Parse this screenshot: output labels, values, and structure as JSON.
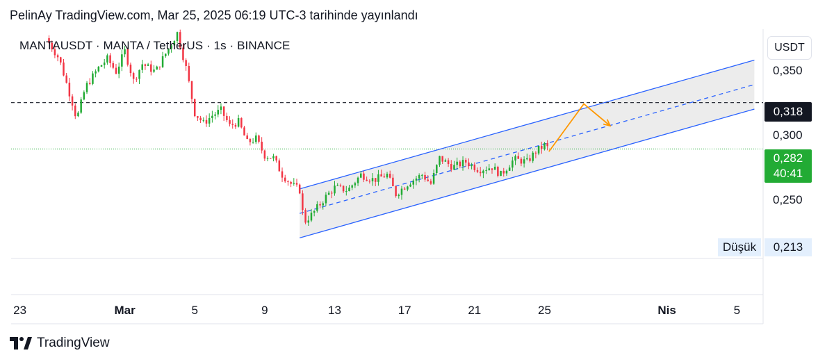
{
  "header": {
    "text": "PelinAy TradingView.com, Mar 25, 2025 06:19 UTC-3 tarihinde yayınlandı"
  },
  "symbol_line": "MANTAUSDT · MANTA / TetherUS · 1s · BINANCE",
  "currency_button": "USDT",
  "brand": {
    "name": "TradingView",
    "icon": "tradingview-logo-icon"
  },
  "price_tags": {
    "resistance": {
      "value": "0,318",
      "color": "#131722"
    },
    "current": {
      "value": "0,282",
      "countdown": "40:41",
      "color": "#22ab34"
    },
    "low": {
      "label": "Düşük",
      "value": "0,213"
    }
  },
  "colors": {
    "up": "#22ab34",
    "down": "#f23645",
    "channel": "#2962ff",
    "arrow": "#ff9800",
    "channel_fill": "#e9e9e9"
  },
  "chart_data": {
    "type": "candlestick",
    "symbol": "MANTAUSDT",
    "interval": "1s",
    "exchange": "BINANCE",
    "ylim": [
      0.197,
      0.375
    ],
    "y_ticks": [
      "0,350",
      "0,300",
      "0,250"
    ],
    "x_ticks": [
      {
        "date": "2025-02-23",
        "label": "23",
        "bold": false
      },
      {
        "date": "2025-03-01",
        "label": "Mar",
        "bold": true
      },
      {
        "date": "2025-03-05",
        "label": "5",
        "bold": false
      },
      {
        "date": "2025-03-09",
        "label": "9",
        "bold": false
      },
      {
        "date": "2025-03-13",
        "label": "13",
        "bold": false
      },
      {
        "date": "2025-03-17",
        "label": "17",
        "bold": false
      },
      {
        "date": "2025-03-21",
        "label": "21",
        "bold": false
      },
      {
        "date": "2025-03-25",
        "label": "25",
        "bold": false
      },
      {
        "date": "2025-04-01",
        "label": "Nis",
        "bold": true
      },
      {
        "date": "2025-04-05",
        "label": "5",
        "bold": false
      }
    ],
    "xlim": [
      "2025-02-22T12:00",
      "2025-04-06T12:00"
    ],
    "price_path": [
      [
        "2025-02-24T12:00",
        0.368
      ],
      [
        "2025-02-25T06:00",
        0.352
      ],
      [
        "2025-02-26T00:00",
        0.318
      ],
      [
        "2025-02-26T06:00",
        0.305
      ],
      [
        "2025-02-26T18:00",
        0.33
      ],
      [
        "2025-02-27T12:00",
        0.345
      ],
      [
        "2025-02-28T00:00",
        0.352
      ],
      [
        "2025-02-28T12:00",
        0.342
      ],
      [
        "2025-03-01T00:00",
        0.358
      ],
      [
        "2025-03-01T12:00",
        0.335
      ],
      [
        "2025-03-02T00:00",
        0.348
      ],
      [
        "2025-03-02T18:00",
        0.342
      ],
      [
        "2025-03-03T12:00",
        0.36
      ],
      [
        "2025-03-04T00:00",
        0.372
      ],
      [
        "2025-03-04T12:00",
        0.345
      ],
      [
        "2025-03-05T00:00",
        0.31
      ],
      [
        "2025-03-05T12:00",
        0.302
      ],
      [
        "2025-03-06T00:00",
        0.308
      ],
      [
        "2025-03-06T12:00",
        0.312
      ],
      [
        "2025-03-07T00:00",
        0.3
      ],
      [
        "2025-03-07T12:00",
        0.303
      ],
      [
        "2025-03-08T00:00",
        0.287
      ],
      [
        "2025-03-08T12:00",
        0.29
      ],
      [
        "2025-03-09T00:00",
        0.277
      ],
      [
        "2025-03-09T12:00",
        0.275
      ],
      [
        "2025-03-10T00:00",
        0.262
      ],
      [
        "2025-03-10T12:00",
        0.255
      ],
      [
        "2025-03-11T00:00",
        0.25
      ],
      [
        "2025-03-11T06:00",
        0.225
      ],
      [
        "2025-03-11T18:00",
        0.232
      ],
      [
        "2025-03-12T12:00",
        0.245
      ],
      [
        "2025-03-13T00:00",
        0.252
      ],
      [
        "2025-03-13T18:00",
        0.25
      ],
      [
        "2025-03-14T12:00",
        0.262
      ],
      [
        "2025-03-15T06:00",
        0.258
      ],
      [
        "2025-03-16T00:00",
        0.262
      ],
      [
        "2025-03-16T12:00",
        0.247
      ],
      [
        "2025-03-17T06:00",
        0.256
      ],
      [
        "2025-03-18T00:00",
        0.262
      ],
      [
        "2025-03-18T12:00",
        0.255
      ],
      [
        "2025-03-19T00:00",
        0.275
      ],
      [
        "2025-03-19T18:00",
        0.268
      ],
      [
        "2025-03-20T12:00",
        0.272
      ],
      [
        "2025-03-21T06:00",
        0.266
      ],
      [
        "2025-03-22T00:00",
        0.268
      ],
      [
        "2025-03-22T12:00",
        0.262
      ],
      [
        "2025-03-23T06:00",
        0.274
      ],
      [
        "2025-03-24T00:00",
        0.272
      ],
      [
        "2025-03-24T12:00",
        0.28
      ],
      [
        "2025-03-25T00:00",
        0.285
      ],
      [
        "2025-03-25T06:00",
        0.282
      ]
    ],
    "resistance_line": {
      "value": 0.318,
      "style": "dashed"
    },
    "current_price_line": {
      "value": 0.282,
      "style": "dotted"
    },
    "channel": {
      "upper": [
        [
          "2025-03-11T00:00",
          0.251
        ],
        [
          "2025-04-06T00:00",
          0.351
        ]
      ],
      "middle": [
        [
          "2025-03-11T00:00",
          0.232
        ],
        [
          "2025-04-06T00:00",
          0.332
        ]
      ],
      "lower": [
        [
          "2025-03-11T00:00",
          0.213
        ],
        [
          "2025-04-06T00:00",
          0.313
        ]
      ]
    },
    "projection_arrow": [
      [
        "2025-03-25T06:00",
        0.28
      ],
      [
        "2025-03-27T06:00",
        0.317
      ],
      [
        "2025-03-28T18:00",
        0.3
      ]
    ]
  }
}
